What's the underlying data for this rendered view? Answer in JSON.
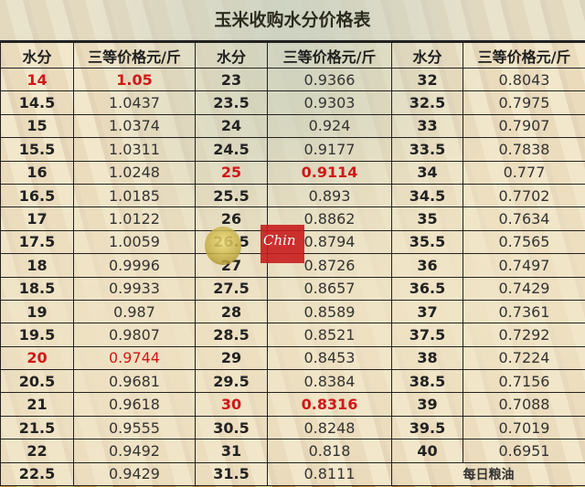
{
  "title": "玉米收购水分价格表",
  "headers": [
    "水分",
    "三等价格元/斤",
    "水分",
    "三等价格元/斤",
    "水分",
    "三等价格元/斤"
  ],
  "highlight_color": "#d01818",
  "rows": [
    [
      {
        "m": "14",
        "p": "1.05",
        "hl": "bold"
      },
      {
        "m": "23",
        "p": "0.9366"
      },
      {
        "m": "32",
        "p": "0.8043"
      }
    ],
    [
      {
        "m": "14.5",
        "p": "1.0437"
      },
      {
        "m": "23.5",
        "p": "0.9303"
      },
      {
        "m": "32.5",
        "p": "0.7975"
      }
    ],
    [
      {
        "m": "15",
        "p": "1.0374"
      },
      {
        "m": "24",
        "p": "0.924"
      },
      {
        "m": "33",
        "p": "0.7907"
      }
    ],
    [
      {
        "m": "15.5",
        "p": "1.0311"
      },
      {
        "m": "24.5",
        "p": "0.9177"
      },
      {
        "m": "33.5",
        "p": "0.7838"
      }
    ],
    [
      {
        "m": "16",
        "p": "1.0248"
      },
      {
        "m": "25",
        "p": "0.9114",
        "hl": "bold"
      },
      {
        "m": "34",
        "p": "0.777"
      }
    ],
    [
      {
        "m": "16.5",
        "p": "1.0185"
      },
      {
        "m": "25.5",
        "p": "0.893"
      },
      {
        "m": "34.5",
        "p": "0.7702"
      }
    ],
    [
      {
        "m": "17",
        "p": "1.0122"
      },
      {
        "m": "26",
        "p": "0.8862"
      },
      {
        "m": "35",
        "p": "0.7634"
      }
    ],
    [
      {
        "m": "17.5",
        "p": "1.0059"
      },
      {
        "m": "26.5",
        "p": "0.8794"
      },
      {
        "m": "35.5",
        "p": "0.7565"
      }
    ],
    [
      {
        "m": "18",
        "p": "0.9996"
      },
      {
        "m": "27",
        "p": "0.8726"
      },
      {
        "m": "36",
        "p": "0.7497"
      }
    ],
    [
      {
        "m": "18.5",
        "p": "0.9933"
      },
      {
        "m": "27.5",
        "p": "0.8657"
      },
      {
        "m": "36.5",
        "p": "0.7429"
      }
    ],
    [
      {
        "m": "19",
        "p": "0.987"
      },
      {
        "m": "28",
        "p": "0.8589"
      },
      {
        "m": "37",
        "p": "0.7361"
      }
    ],
    [
      {
        "m": "19.5",
        "p": "0.9807"
      },
      {
        "m": "28.5",
        "p": "0.8521"
      },
      {
        "m": "37.5",
        "p": "0.7292"
      }
    ],
    [
      {
        "m": "20",
        "p": "0.9744",
        "hl": "normal"
      },
      {
        "m": "29",
        "p": "0.8453"
      },
      {
        "m": "38",
        "p": "0.7224"
      }
    ],
    [
      {
        "m": "20.5",
        "p": "0.9681"
      },
      {
        "m": "29.5",
        "p": "0.8384"
      },
      {
        "m": "38.5",
        "p": "0.7156"
      }
    ],
    [
      {
        "m": "21",
        "p": "0.9618"
      },
      {
        "m": "30",
        "p": "0.8316",
        "hl": "bold"
      },
      {
        "m": "39",
        "p": "0.7088"
      }
    ],
    [
      {
        "m": "21.5",
        "p": "0.9555"
      },
      {
        "m": "30.5",
        "p": "0.8248"
      },
      {
        "m": "39.5",
        "p": "0.7019"
      }
    ],
    [
      {
        "m": "22",
        "p": "0.9492"
      },
      {
        "m": "31",
        "p": "0.818"
      },
      {
        "m": "40",
        "p": "0.6951"
      }
    ],
    [
      {
        "m": "22.5",
        "p": "0.9429"
      },
      {
        "m": "31.5",
        "p": "0.8111"
      }
    ]
  ],
  "source_label": "每日粮油",
  "watermark": {
    "text": "China",
    "icon": "globe-logo-icon"
  }
}
